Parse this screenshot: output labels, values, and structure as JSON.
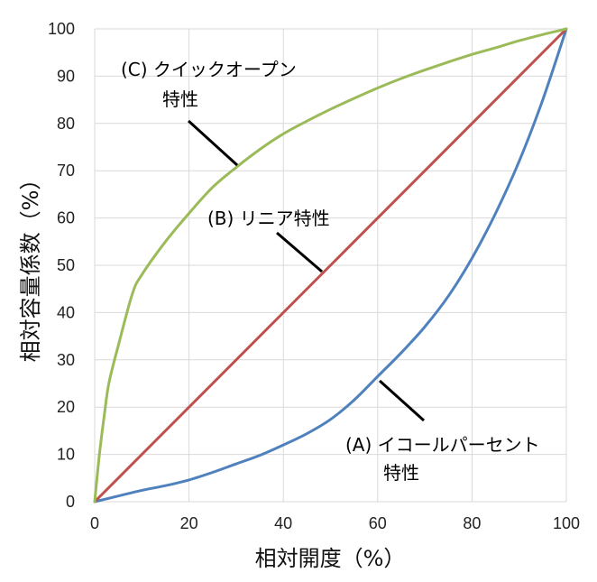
{
  "chart_data": {
    "type": "line",
    "xlabel": "相対開度（%）",
    "ylabel": "相対容量係数（%）",
    "xlim": [
      0,
      100
    ],
    "ylim": [
      0,
      100
    ],
    "xticks": [
      0,
      20,
      40,
      60,
      80,
      100
    ],
    "yticks": [
      0,
      10,
      20,
      30,
      40,
      50,
      60,
      70,
      80,
      90,
      100
    ],
    "grid": true,
    "legend": "none",
    "series": [
      {
        "color": "#4f81bd",
        "x": [
          0,
          5,
          10,
          15,
          20,
          25,
          30,
          35,
          40,
          45,
          50,
          55,
          60,
          65,
          70,
          75,
          80,
          85,
          90,
          95,
          100
        ],
        "y": [
          0,
          1.2,
          2.4,
          3.4,
          4.6,
          6.2,
          8.0,
          9.8,
          12.0,
          14.4,
          17.4,
          21.5,
          26.5,
          31.5,
          37.0,
          43.5,
          51.5,
          61.0,
          72.0,
          85.0,
          100
        ]
      },
      {
        "color": "#c0504d",
        "x": [
          0,
          100
        ],
        "y": [
          0,
          100
        ]
      },
      {
        "color": "#9bbb59",
        "x": [
          0,
          1,
          2,
          3,
          5,
          8,
          10,
          15,
          20,
          25,
          30,
          35,
          40,
          45,
          50,
          55,
          60,
          65,
          70,
          75,
          80,
          85,
          90,
          95,
          100
        ],
        "y": [
          0,
          10,
          18,
          25,
          33,
          44,
          48,
          55,
          61,
          66.5,
          70.7,
          74.5,
          77.8,
          80.5,
          83.0,
          85.3,
          87.5,
          89.5,
          91.3,
          93.0,
          94.6,
          96.0,
          97.5,
          98.8,
          100
        ]
      }
    ],
    "annotations": [
      {
        "lines": [
          "(C) クイックオープン",
          "特性"
        ]
      },
      {
        "lines": [
          "(B) リニア特性"
        ]
      },
      {
        "lines": [
          "(A) イコールパーセント",
          "特性"
        ]
      }
    ]
  }
}
